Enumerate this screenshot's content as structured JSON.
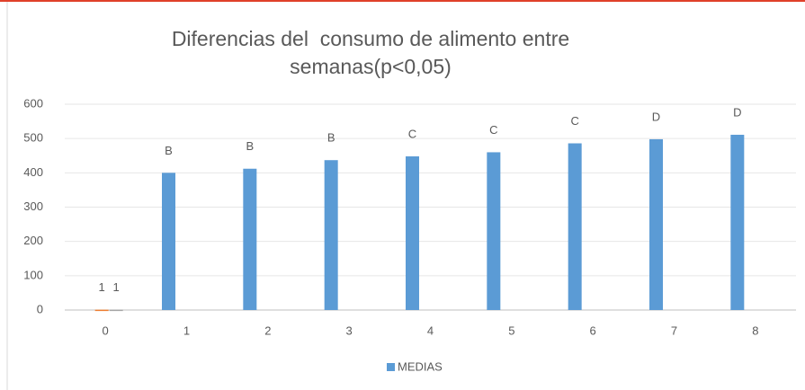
{
  "chart_data": {
    "type": "bar",
    "title": [
      "Diferencias del  consumo de alimento entre",
      "semanas(p<0,05)"
    ],
    "categories": [
      "0",
      "1",
      "2",
      "3",
      "4",
      "5",
      "6",
      "7",
      "8"
    ],
    "series": [
      {
        "name": "MEDIAS",
        "color": "#5b9bd5",
        "values": [
          null,
          400,
          412,
          437,
          448,
          460,
          486,
          498,
          511
        ],
        "value_labels": [
          null,
          "B",
          "B",
          "B",
          "C",
          "C",
          "C",
          "D",
          "D"
        ]
      },
      {
        "color": "#ed7d31",
        "values": [
          1,
          null,
          null,
          null,
          null,
          null,
          null,
          null,
          null
        ],
        "labels": true
      },
      {
        "color": "#a5a5a5",
        "values": [
          1,
          null,
          null,
          null,
          null,
          null,
          null,
          null,
          null
        ],
        "labels": true
      }
    ],
    "ylim": [
      0,
      600
    ],
    "yticks": [
      0,
      100,
      200,
      300,
      400,
      500,
      600
    ],
    "grid": true,
    "legend": "bottom"
  }
}
